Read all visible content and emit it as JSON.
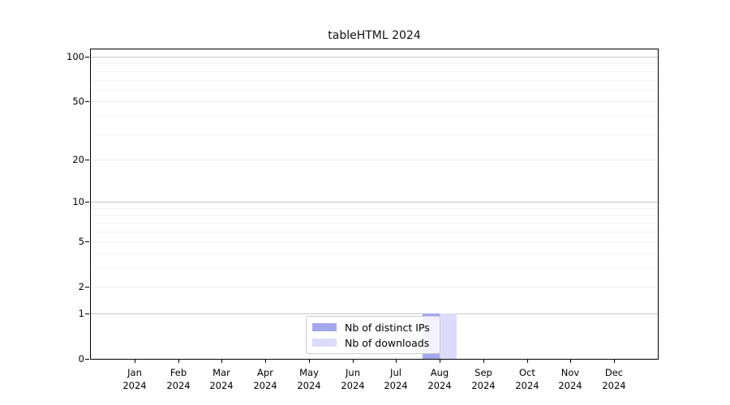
{
  "chart_data": {
    "type": "bar",
    "title": "tableHTML 2024",
    "x_year": "2024",
    "categories": [
      "Jan",
      "Feb",
      "Mar",
      "Apr",
      "May",
      "Jun",
      "Jul",
      "Aug",
      "Sep",
      "Oct",
      "Nov",
      "Dec"
    ],
    "series": [
      {
        "name": "Nb of distinct IPs",
        "color": "#a2a7ee",
        "values": [
          0,
          0,
          0,
          0,
          0,
          0,
          0,
          1,
          0,
          0,
          0,
          0
        ]
      },
      {
        "name": "Nb of downloads",
        "color": "#dbdcf9",
        "values": [
          0,
          0,
          0,
          0,
          0,
          0,
          0,
          1,
          0,
          0,
          0,
          0
        ]
      }
    ],
    "xlabel": "",
    "ylabel": "",
    "y_axis": {
      "scale": "log1p",
      "ticks": [
        0,
        1,
        2,
        5,
        10,
        20,
        50,
        100
      ],
      "minor_gridlines": [
        3,
        4,
        6,
        7,
        8,
        9,
        30,
        40,
        60,
        70,
        80,
        90
      ],
      "ylim": [
        0,
        112
      ]
    },
    "legend": {
      "position": "inside-bottom-center"
    },
    "grid": "horizontal"
  },
  "colors": {
    "axis": "#000000",
    "grid_decade": "#c9c9c9",
    "grid_major": "#ededed",
    "grid_minor": "#f3f3f3",
    "background": "#ffffff",
    "legend_border": "#cccccc"
  }
}
